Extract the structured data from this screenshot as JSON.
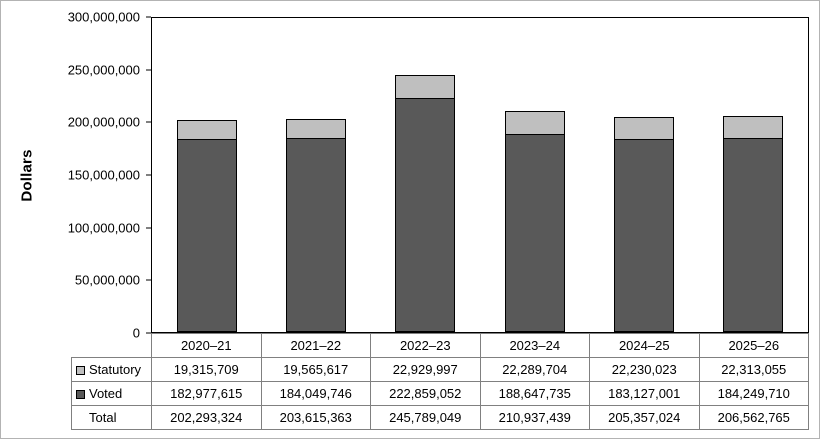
{
  "chart_data": {
    "type": "bar",
    "stacked": true,
    "title": "",
    "xlabel": "",
    "ylabel": "Dollars",
    "ylim": [
      0,
      300000000
    ],
    "grid": false,
    "legend_position": "table",
    "ytick_values": [
      0,
      50000000,
      100000000,
      150000000,
      200000000,
      250000000,
      300000000
    ],
    "ytick_labels": [
      "0",
      "50,000,000",
      "100,000,000",
      "150,000,000",
      "200,000,000",
      "250,000,000",
      "300,000,000"
    ],
    "categories": [
      "2020–21",
      "2021–22",
      "2022–23",
      "2023–24",
      "2024–25",
      "2025–26"
    ],
    "series": [
      {
        "name": "Statutory",
        "color": "#bfbfbf",
        "values": [
          19315709,
          19565617,
          22929997,
          22289704,
          22230023,
          22313055
        ],
        "labels": [
          "19,315,709",
          "19,565,617",
          "22,929,997",
          "22,289,704",
          "22,230,023",
          "22,313,055"
        ]
      },
      {
        "name": "Voted",
        "color": "#595959",
        "values": [
          182977615,
          184049746,
          222859052,
          188647735,
          183127001,
          184249710
        ],
        "labels": [
          "182,977,615",
          "184,049,746",
          "222,859,052",
          "188,647,735",
          "183,127,001",
          "184,249,710"
        ]
      }
    ],
    "total_row": {
      "name": "Total",
      "values": [
        202293324,
        203615363,
        245789049,
        210937439,
        205357024,
        206562765
      ],
      "labels": [
        "202,293,324",
        "203,615,363",
        "245,789,049",
        "210,937,439",
        "205,357,024",
        "206,562,765"
      ]
    }
  },
  "colors": {
    "statutory": "#bfbfbf",
    "voted": "#595959",
    "plot_border": "#000000",
    "table_border": "#808080"
  }
}
